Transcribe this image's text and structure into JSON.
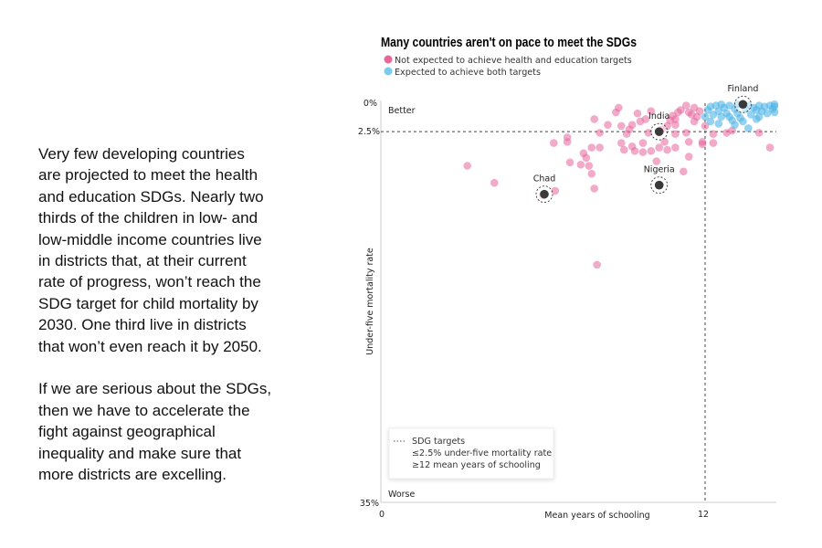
{
  "article": {
    "paragraphs": [
      [
        "Very few developing countries",
        "are projected to meet the health",
        "and education SDGs. Nearly two",
        "thirds of the children in low- and",
        "low-middle income countries live",
        "in districts that, at their current",
        "rate of progress, won’t reach the",
        "SDG target for child mortality by",
        "2030. One third live in districts",
        "that won’t even reach it by 2050."
      ],
      [
        "If we are serious about the SDGs,",
        "then we have to accelerate the",
        "fight against geographical",
        "inequality and make sure that",
        "more districts are excelling."
      ]
    ]
  },
  "chart_data": {
    "type": "scatter",
    "title": "Many countries aren't on pace to meet the SDGs",
    "xlabel": "Mean years of schooling",
    "ylabel": "Under-five mortality rate",
    "xlim": [
      0,
      14.7
    ],
    "ylim": [
      0,
      35
    ],
    "y_inverted": true,
    "x_ticks": [
      "0",
      "12"
    ],
    "y_ticks": [
      "0%",
      "2.5%",
      "35%"
    ],
    "y_tick_values": [
      0,
      2.5,
      35
    ],
    "x_tick_values": [
      0,
      12
    ],
    "grid": false,
    "corner_labels": {
      "better": "Better",
      "worse": "Worse"
    },
    "reference_lines": {
      "y": 2.5,
      "x": 12,
      "style": "dashed"
    },
    "legend": {
      "placement": "top-left",
      "entries": [
        {
          "label": "Not expected to achieve health and education targets",
          "color": "#e8659c"
        },
        {
          "label": "Expected to achieve both targets",
          "color": "#4fb4e6"
        }
      ]
    },
    "targets_box": {
      "title": "SDG targets",
      "lines": [
        "≤2.5% under-five mortality rate",
        "≥12 mean years of schooling"
      ],
      "placement": "bottom-left"
    },
    "series": [
      {
        "name": "Not expected to achieve health and education targets",
        "color": "#e8659c",
        "points": [
          [
            3.2,
            5.5
          ],
          [
            4.2,
            7.0
          ],
          [
            6.45,
            7.7
          ],
          [
            6.4,
            3.5
          ],
          [
            6.9,
            3.0
          ],
          [
            6.9,
            3.4
          ],
          [
            7.0,
            5.2
          ],
          [
            7.4,
            5.4
          ],
          [
            7.5,
            4.4
          ],
          [
            7.6,
            4.8
          ],
          [
            7.7,
            5.5
          ],
          [
            7.8,
            6.2
          ],
          [
            7.9,
            7.5
          ],
          [
            7.8,
            3.9
          ],
          [
            8.1,
            3.9
          ],
          [
            7.9,
            1.4
          ],
          [
            8.1,
            2.6
          ],
          [
            8.4,
            1.9
          ],
          [
            8.7,
            0.8
          ],
          [
            8.8,
            0.4
          ],
          [
            8.9,
            2.0
          ],
          [
            8.9,
            3.5
          ],
          [
            9.0,
            4.1
          ],
          [
            9.1,
            2.7
          ],
          [
            9.2,
            2.3
          ],
          [
            9.3,
            3.8
          ],
          [
            9.4,
            4.2
          ],
          [
            9.5,
            0.9
          ],
          [
            9.6,
            1.6
          ],
          [
            9.7,
            3.5
          ],
          [
            9.7,
            4.3
          ],
          [
            9.8,
            1.4
          ],
          [
            9.9,
            2.6
          ],
          [
            10.0,
            0.7
          ],
          [
            10.0,
            4.2
          ],
          [
            10.2,
            5.1
          ],
          [
            10.3,
            3.9
          ],
          [
            10.5,
            3.4
          ],
          [
            10.6,
            4.1
          ],
          [
            10.7,
            1.5
          ],
          [
            10.8,
            1.1
          ],
          [
            10.9,
            2.7
          ],
          [
            10.9,
            1.9
          ],
          [
            10.9,
            3.9
          ],
          [
            11.0,
            0.8
          ],
          [
            11.2,
            6.0
          ],
          [
            11.3,
            2.6
          ],
          [
            11.3,
            0.2
          ],
          [
            11.4,
            3.4
          ],
          [
            11.4,
            4.7
          ],
          [
            11.4,
            0.8
          ],
          [
            11.6,
            0.4
          ],
          [
            11.7,
            1.2
          ],
          [
            11.8,
            0.7
          ],
          [
            11.9,
            3.4
          ],
          [
            11.9,
            3.6
          ],
          [
            12.3,
            3.5
          ],
          [
            12.3,
            2.7
          ],
          [
            12.8,
            2.6
          ],
          [
            13.0,
            2.4
          ],
          [
            14.0,
            2.6
          ],
          [
            14.4,
            3.9
          ],
          [
            12.0,
            2.0
          ],
          [
            8.0,
            14.2
          ],
          [
            6.0,
            8.1
          ],
          [
            10.9,
            1.4
          ],
          [
            11.1,
            0.6
          ],
          [
            10.6,
            2.0
          ],
          [
            11.5,
            1.0
          ],
          [
            11.6,
            1.6
          ],
          [
            10.4,
            2.3
          ],
          [
            9.3,
            1.9
          ]
        ]
      },
      {
        "name": "Expected to achieve both targets",
        "color": "#4fb4e6",
        "points": [
          [
            12.1,
            0.6
          ],
          [
            12.2,
            0.3
          ],
          [
            12.3,
            1.0
          ],
          [
            12.4,
            0.2
          ],
          [
            12.5,
            0.7
          ],
          [
            12.6,
            1.2
          ],
          [
            12.7,
            0.4
          ],
          [
            12.8,
            0.9
          ],
          [
            12.9,
            0.2
          ],
          [
            13.0,
            1.5
          ],
          [
            13.1,
            0.5
          ],
          [
            13.2,
            0.9
          ],
          [
            13.3,
            1.3
          ],
          [
            13.5,
            0.5
          ],
          [
            13.6,
            0.2
          ],
          [
            13.7,
            1.0
          ],
          [
            13.8,
            0.4
          ],
          [
            13.9,
            1.4
          ],
          [
            14.0,
            0.2
          ],
          [
            14.1,
            0.7
          ],
          [
            14.2,
            0.3
          ],
          [
            14.3,
            0.9
          ],
          [
            14.4,
            0.2
          ],
          [
            14.5,
            0.5
          ],
          [
            14.6,
            0.8
          ],
          [
            14.7,
            0.3
          ],
          [
            12.2,
            1.6
          ],
          [
            12.5,
            1.8
          ],
          [
            13.1,
            1.9
          ],
          [
            13.4,
            1.6
          ],
          [
            13.6,
            2.2
          ],
          [
            12.9,
            1.2
          ],
          [
            14.0,
            1.2
          ],
          [
            12.0,
            1.2
          ],
          [
            13.9,
            0.6
          ],
          [
            14.6,
            0.1
          ],
          [
            12.6,
            0.1
          ],
          [
            13.2,
            0.1
          ]
        ]
      }
    ],
    "highlighted": [
      {
        "label": "Chad",
        "x": 6.05,
        "y": 8.0
      },
      {
        "label": "India",
        "x": 10.3,
        "y": 2.5
      },
      {
        "label": "Nigeria",
        "x": 10.3,
        "y": 7.2
      },
      {
        "label": "Finland",
        "x": 13.4,
        "y": 0.1
      }
    ]
  }
}
